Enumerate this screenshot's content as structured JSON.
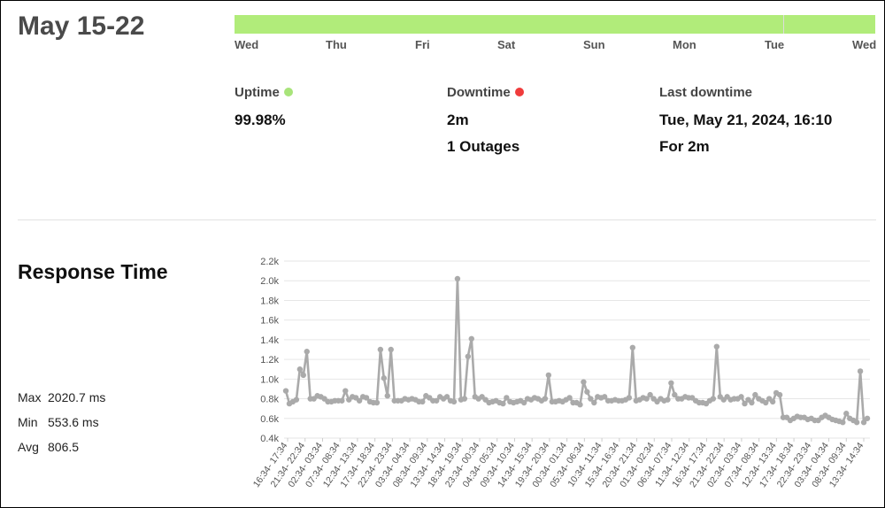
{
  "period": {
    "title": "May 15-22"
  },
  "timeline": {
    "days": [
      "Wed",
      "Thu",
      "Fri",
      "Sat",
      "Sun",
      "Mon",
      "Tue",
      "Wed"
    ],
    "status_color": "#b1ec7a"
  },
  "stats": {
    "uptime": {
      "label": "Uptime",
      "value": "99.98%",
      "indicator_color": "#a8e47a"
    },
    "downtime": {
      "label": "Downtime",
      "value": "2m",
      "outages": "1 Outages",
      "indicator_color": "#f03c3c"
    },
    "last_downtime": {
      "label": "Last downtime",
      "value": "Tue, May 21, 2024, 16:10",
      "duration": "For 2m"
    }
  },
  "response": {
    "title": "Response Time",
    "max": {
      "label": "Max",
      "value": "2020.7 ms"
    },
    "min": {
      "label": "Min",
      "value": "553.6 ms"
    },
    "avg": {
      "label": "Avg",
      "value": "806.5"
    }
  },
  "chart_data": {
    "type": "line",
    "series_color": "#aaaaaa",
    "grid": true,
    "ylim": [
      0.4,
      2.2
    ],
    "yticks": [
      "0.4k",
      "0.6k",
      "0.8k",
      "1.0k",
      "1.2k",
      "1.4k",
      "1.6k",
      "1.8k",
      "2.0k",
      "2.2k"
    ],
    "xticks": [
      "16:34- 17:34",
      "21:34- 22:34",
      "02:34- 03:34",
      "07:34- 08:34",
      "12:34- 13:34",
      "17:34- 18:34",
      "22:34- 23:34",
      "03:34- 04:34",
      "08:34- 09:34",
      "13:34- 14:34",
      "18:34- 19:34",
      "23:34- 00:34",
      "04:34- 05:34",
      "09:34- 10:34",
      "14:34- 15:34",
      "19:34- 20:34",
      "00:34- 01:34",
      "05:34- 06:34",
      "10:34- 11:34",
      "15:34- 16:34",
      "20:34- 21:34",
      "01:34- 02:34",
      "06:34- 07:34",
      "11:34- 12:34",
      "16:34- 17:34",
      "21:34- 22:34",
      "02:34- 03:34",
      "07:34- 08:34",
      "12:34- 13:34",
      "17:34- 18:34",
      "22:34- 23:34",
      "03:34- 04:34",
      "08:34- 09:34",
      "13:34- 14:34"
    ],
    "values": [
      0.88,
      0.75,
      0.77,
      0.79,
      1.1,
      1.04,
      1.28,
      0.8,
      0.8,
      0.83,
      0.82,
      0.8,
      0.77,
      0.77,
      0.78,
      0.78,
      0.78,
      0.88,
      0.79,
      0.82,
      0.81,
      0.78,
      0.82,
      0.81,
      0.77,
      0.76,
      0.76,
      1.3,
      1.01,
      0.83,
      1.3,
      0.78,
      0.78,
      0.78,
      0.8,
      0.79,
      0.8,
      0.79,
      0.77,
      0.77,
      0.83,
      0.81,
      0.78,
      0.78,
      0.82,
      0.8,
      0.82,
      0.78,
      0.77,
      2.02,
      0.79,
      0.8,
      1.23,
      1.41,
      0.82,
      0.8,
      0.82,
      0.79,
      0.76,
      0.77,
      0.78,
      0.76,
      0.75,
      0.81,
      0.77,
      0.76,
      0.77,
      0.78,
      0.76,
      0.8,
      0.79,
      0.81,
      0.8,
      0.78,
      0.8,
      1.04,
      0.77,
      0.77,
      0.78,
      0.77,
      0.79,
      0.81,
      0.76,
      0.76,
      0.74,
      0.97,
      0.87,
      0.8,
      0.76,
      0.82,
      0.81,
      0.82,
      0.78,
      0.78,
      0.79,
      0.78,
      0.78,
      0.79,
      0.81,
      1.32,
      0.78,
      0.79,
      0.81,
      0.8,
      0.84,
      0.8,
      0.77,
      0.8,
      0.78,
      0.79,
      0.96,
      0.84,
      0.8,
      0.8,
      0.82,
      0.81,
      0.81,
      0.78,
      0.76,
      0.76,
      0.75,
      0.78,
      0.8,
      1.33,
      0.82,
      0.79,
      0.82,
      0.79,
      0.8,
      0.8,
      0.82,
      0.75,
      0.79,
      0.76,
      0.84,
      0.8,
      0.78,
      0.76,
      0.8,
      0.77,
      0.86,
      0.84,
      0.61,
      0.61,
      0.58,
      0.6,
      0.62,
      0.61,
      0.61,
      0.59,
      0.6,
      0.58,
      0.58,
      0.61,
      0.63,
      0.61,
      0.59,
      0.58,
      0.57,
      0.56,
      0.65,
      0.6,
      0.58,
      0.56,
      1.08,
      0.56,
      0.6
    ]
  }
}
